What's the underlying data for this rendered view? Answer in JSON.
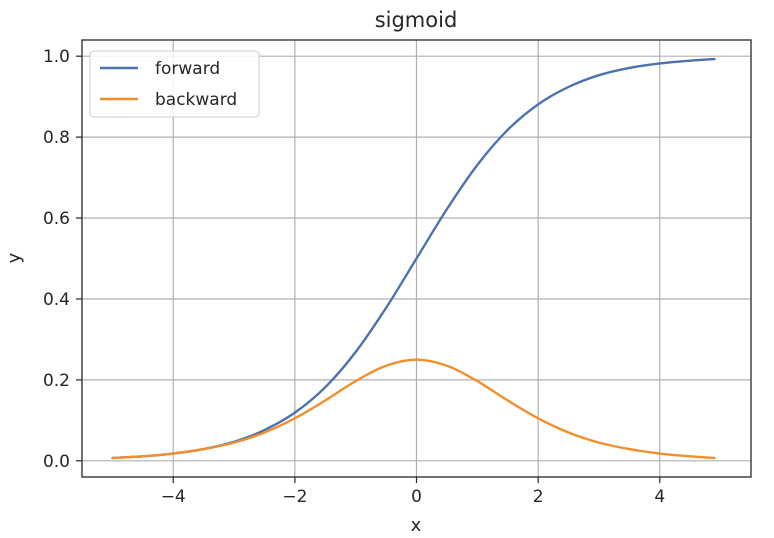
{
  "chart_data": {
    "type": "line",
    "title": "sigmoid",
    "xlabel": "x",
    "ylabel": "y",
    "xlim": [
      -5.5,
      5.5
    ],
    "ylim": [
      -0.04,
      1.04
    ],
    "x_ticks": [
      -4,
      -2,
      0,
      2,
      4
    ],
    "x_tick_labels": [
      "−4",
      "−2",
      "0",
      "2",
      "4"
    ],
    "y_ticks": [
      0.0,
      0.2,
      0.4,
      0.6,
      0.8,
      1.0
    ],
    "y_tick_labels": [
      "0.0",
      "0.2",
      "0.4",
      "0.6",
      "0.8",
      "1.0"
    ],
    "grid": true,
    "legend_position": "top-left",
    "x": [
      -5.0,
      -4.5,
      -4.0,
      -3.5,
      -3.0,
      -2.5,
      -2.0,
      -1.5,
      -1.0,
      -0.5,
      0.0,
      0.5,
      1.0,
      1.5,
      2.0,
      2.5,
      3.0,
      3.5,
      4.0,
      4.5,
      4.9
    ],
    "series": [
      {
        "name": "forward",
        "color": "#4c72b0",
        "values": [
          0.007,
          0.011,
          0.018,
          0.029,
          0.047,
          0.076,
          0.119,
          0.182,
          0.269,
          0.378,
          0.5,
          0.622,
          0.731,
          0.818,
          0.881,
          0.924,
          0.953,
          0.971,
          0.982,
          0.989,
          0.993
        ]
      },
      {
        "name": "backward",
        "color": "#f28e2b",
        "values": [
          0.007,
          0.011,
          0.018,
          0.029,
          0.045,
          0.07,
          0.105,
          0.149,
          0.197,
          0.235,
          0.25,
          0.235,
          0.197,
          0.149,
          0.105,
          0.07,
          0.045,
          0.029,
          0.018,
          0.011,
          0.007
        ]
      }
    ]
  }
}
